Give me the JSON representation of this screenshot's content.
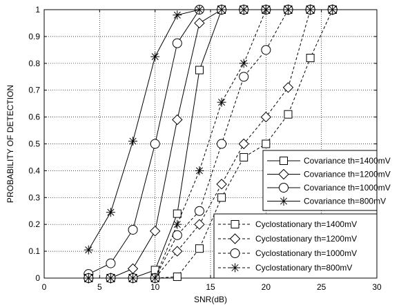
{
  "chart_data": {
    "type": "line",
    "xlabel": "SNR(dB)",
    "ylabel": "PROBABILITY OF DETECTION",
    "xlim": [
      0,
      30
    ],
    "ylim": [
      0,
      1
    ],
    "xticks": [
      0,
      5,
      10,
      15,
      20,
      25,
      30
    ],
    "yticks": [
      0,
      0.1,
      0.2,
      0.3,
      0.4,
      0.5,
      0.6,
      0.7,
      0.8,
      0.9,
      1
    ],
    "grid": true,
    "series": [
      {
        "name": "Covariance th=1400mV",
        "line": "solid",
        "marker": "square",
        "x": [
          4,
          6,
          8,
          10,
          12,
          14,
          16,
          18,
          20,
          22,
          24,
          26
        ],
        "y": [
          0,
          0,
          0,
          0.03,
          0.24,
          0.775,
          1,
          1,
          1,
          1,
          1,
          1
        ]
      },
      {
        "name": "Covariance th=1200mV",
        "line": "solid",
        "marker": "diamond",
        "x": [
          4,
          6,
          8,
          10,
          12,
          14,
          16,
          18,
          20,
          22,
          24,
          26
        ],
        "y": [
          0,
          0,
          0.035,
          0.175,
          0.59,
          0.95,
          1,
          1,
          1,
          1,
          1,
          1
        ]
      },
      {
        "name": "Covariance th=1000mV",
        "line": "solid",
        "marker": "circle",
        "x": [
          4,
          6,
          8,
          10,
          12,
          14,
          16,
          18,
          20,
          22,
          24,
          26
        ],
        "y": [
          0.015,
          0.055,
          0.18,
          0.5,
          0.875,
          1,
          1,
          1,
          1,
          1,
          1,
          1
        ]
      },
      {
        "name": "Covariance th=800mV",
        "line": "solid",
        "marker": "star",
        "x": [
          4,
          6,
          8,
          10,
          12,
          14,
          16,
          18,
          20,
          22,
          24,
          26
        ],
        "y": [
          0.105,
          0.245,
          0.51,
          0.825,
          0.98,
          1,
          1,
          1,
          1,
          1,
          1,
          1
        ]
      },
      {
        "name": "Cyclostationary th=1400mV",
        "line": "dashed",
        "marker": "square",
        "x": [
          4,
          6,
          8,
          10,
          12,
          14,
          16,
          18,
          20,
          22,
          24,
          26
        ],
        "y": [
          0,
          0,
          0,
          0,
          0.005,
          0.11,
          0.3,
          0.45,
          0.5,
          0.61,
          0.82,
          1
        ]
      },
      {
        "name": "Cyclostationary th=1200mV",
        "line": "dashed",
        "marker": "diamond",
        "x": [
          4,
          6,
          8,
          10,
          12,
          14,
          16,
          18,
          20,
          22,
          24,
          26
        ],
        "y": [
          0,
          0,
          0,
          0,
          0.1,
          0.2,
          0.35,
          0.5,
          0.6,
          0.71,
          1,
          1
        ]
      },
      {
        "name": "Cyclostationary th=1000mV",
        "line": "dashed",
        "marker": "circle",
        "x": [
          4,
          6,
          8,
          10,
          12,
          14,
          16,
          18,
          20,
          22,
          24,
          26
        ],
        "y": [
          0,
          0,
          0,
          0,
          0.16,
          0.25,
          0.5,
          0.75,
          0.85,
          1,
          1,
          1
        ]
      },
      {
        "name": "Cyclostationary th=800mV",
        "line": "dashed",
        "marker": "star",
        "x": [
          4,
          6,
          8,
          10,
          12,
          14,
          16,
          18,
          20,
          22,
          24,
          26
        ],
        "y": [
          0,
          0,
          0,
          0,
          0.2,
          0.4,
          0.655,
          0.8,
          1,
          1,
          1,
          1
        ]
      }
    ],
    "legends": [
      {
        "placement": "middle-right",
        "entries": [
          "Covariance th=1400mV",
          "Covariance th=1200mV",
          "Covariance th=1000mV",
          "Covariance th=800mV"
        ]
      },
      {
        "placement": "bottom-right",
        "entries": [
          "Cyclostationary th=1400mV",
          "Cyclostationary th=1200mV",
          "Cyclostationary th=1000mV",
          "Cyclostationary th=800mV"
        ]
      }
    ]
  }
}
